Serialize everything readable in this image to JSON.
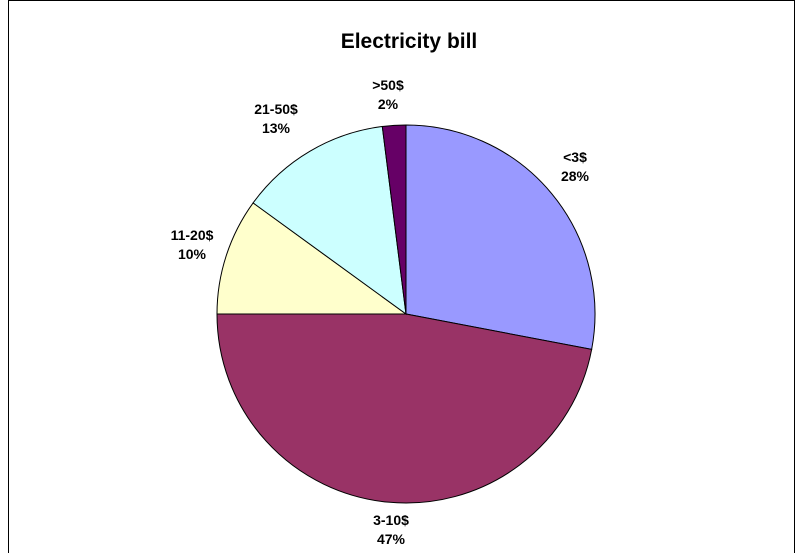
{
  "chart_data": {
    "type": "pie",
    "title": "Electricity bill",
    "slices": [
      {
        "label": "<3$",
        "value": 28,
        "percent_label": "28%",
        "color": "#9999ff"
      },
      {
        "label": "3-10$",
        "value": 47,
        "percent_label": "47%",
        "color": "#993366"
      },
      {
        "label": "11-20$",
        "value": 10,
        "percent_label": "10%",
        "color": "#ffffcc"
      },
      {
        "label": "21-50$",
        "value": 13,
        "percent_label": "13%",
        "color": "#ccffff"
      },
      {
        "label": ">50$",
        "value": 2,
        "percent_label": "2%",
        "color": "#660066"
      }
    ],
    "start_angle": "12 o'clock",
    "direction": "clockwise",
    "legend": "none"
  }
}
